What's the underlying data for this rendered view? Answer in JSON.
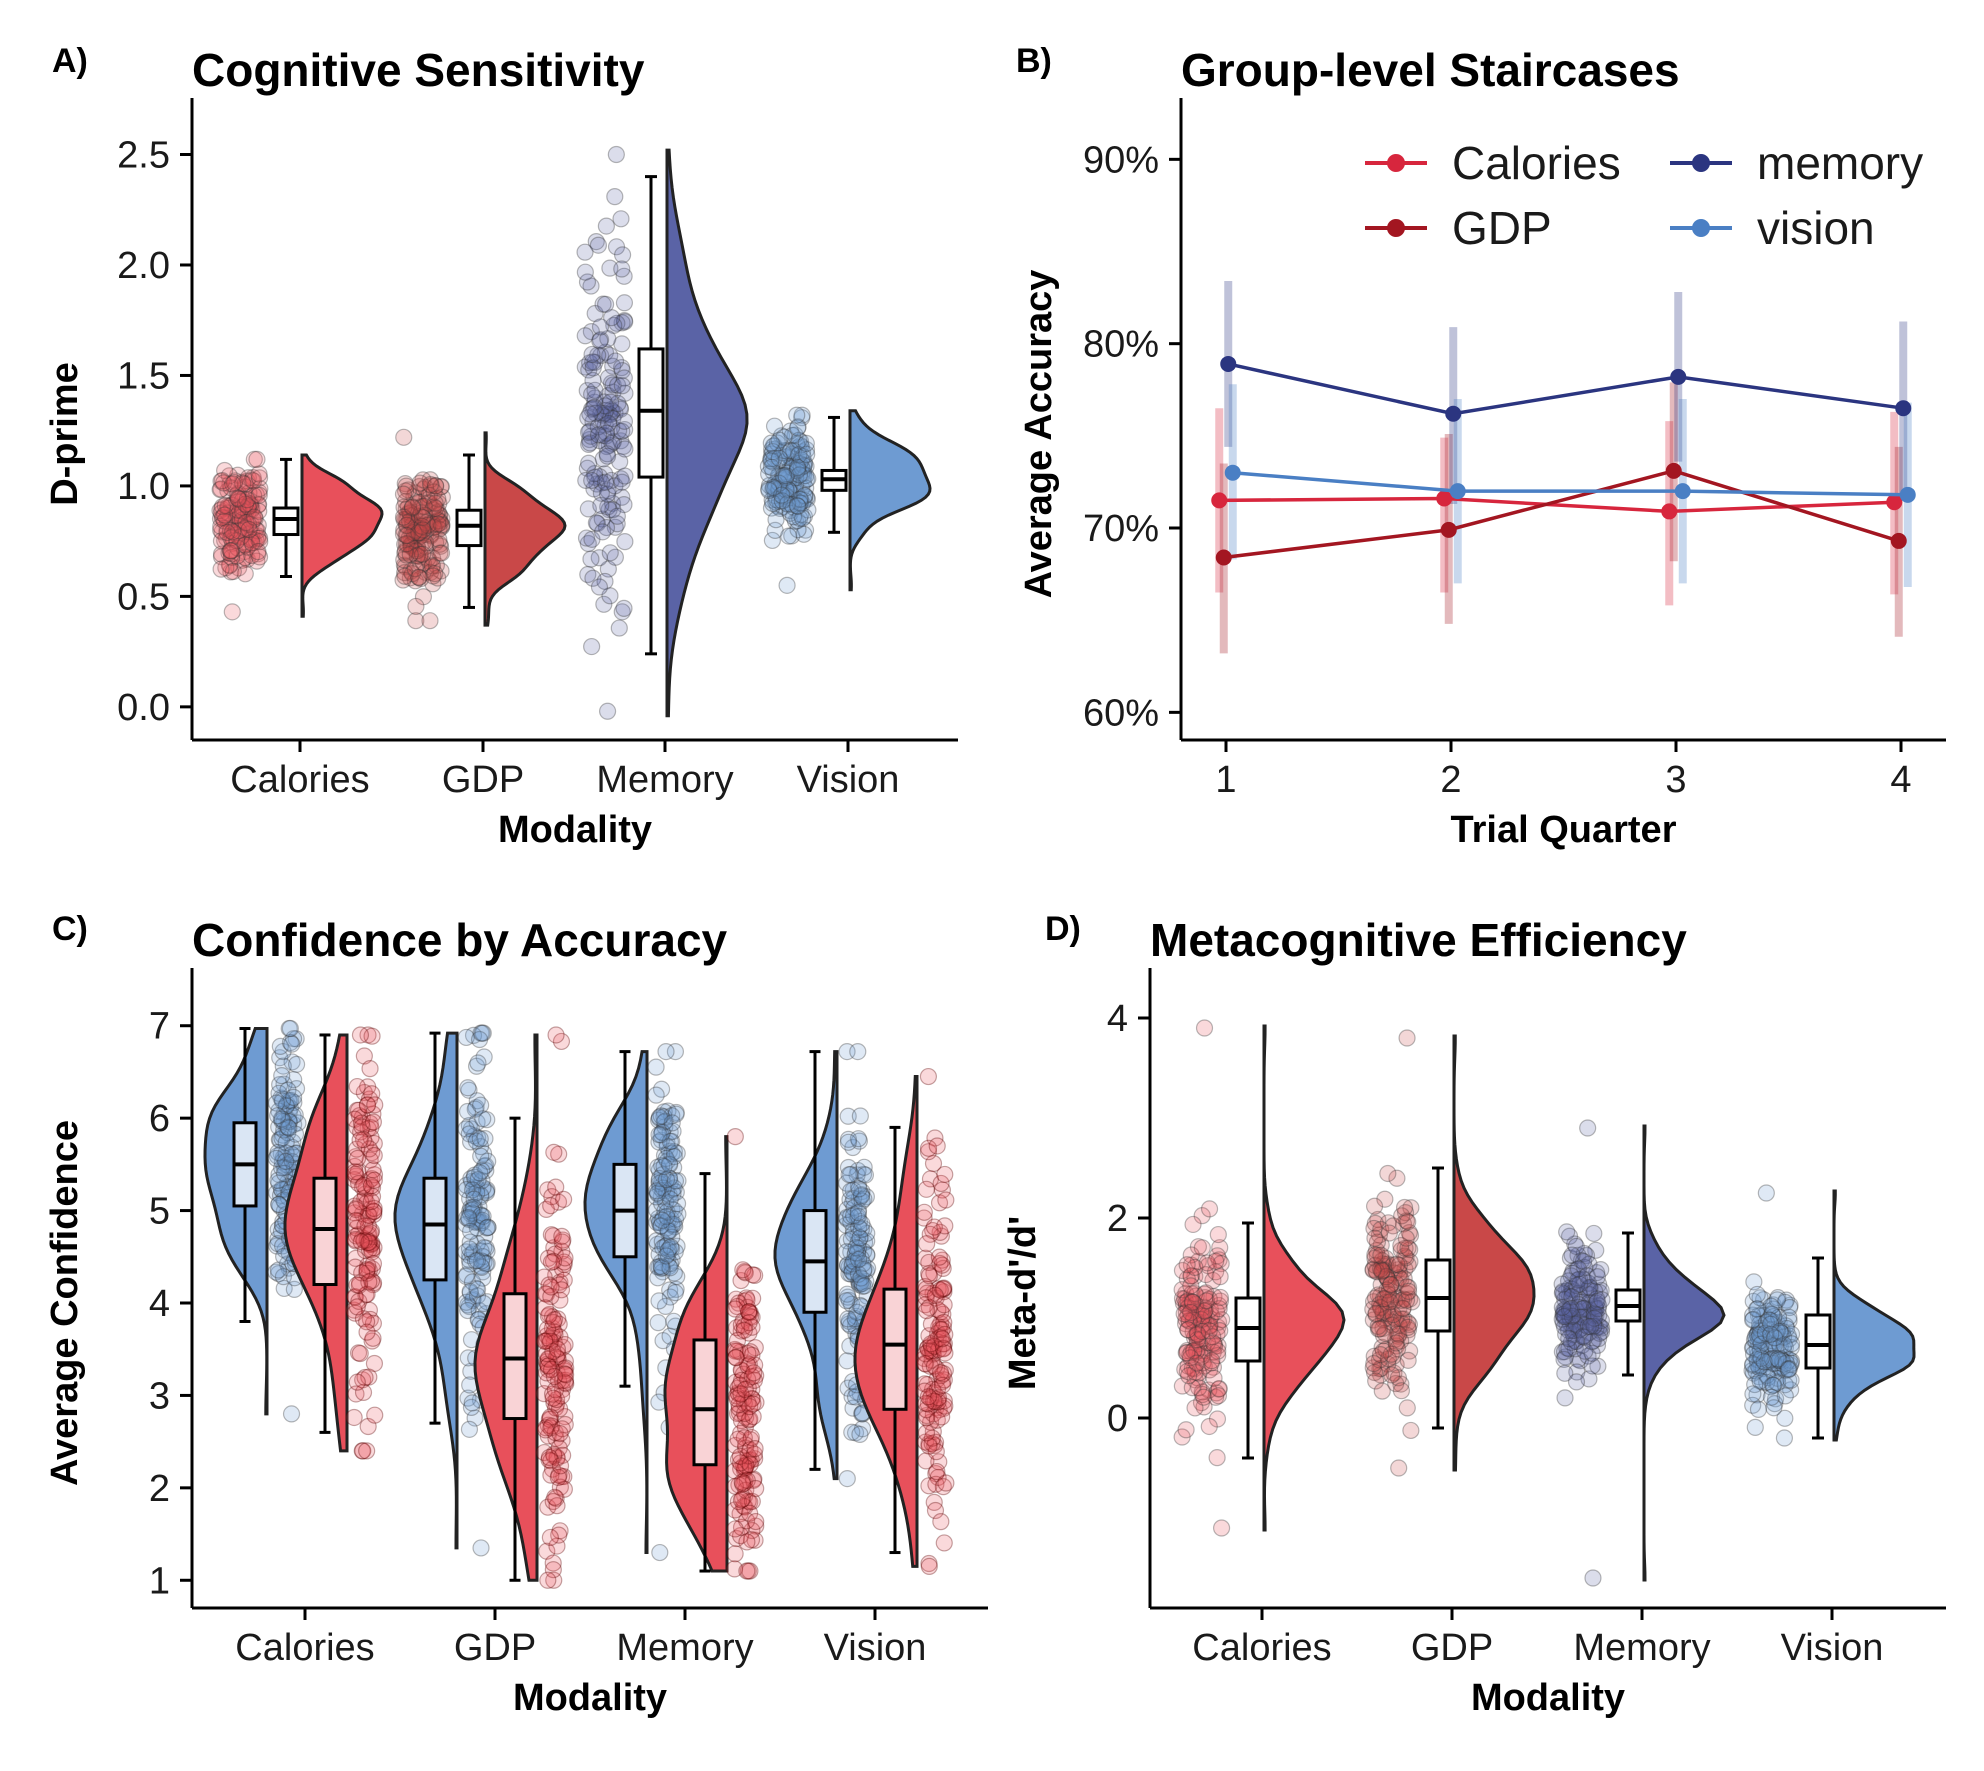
{
  "panels": {
    "a": {
      "letter": "A)",
      "title": "Cognitive Sensitivity"
    },
    "b": {
      "letter": "B)",
      "title": "Group-level Staircases"
    },
    "c": {
      "letter": "C)",
      "title": "Confidence by Accuracy"
    },
    "d": {
      "letter": "D)",
      "title": "Metacognitive Efficiency"
    }
  },
  "colors": {
    "calories": "#e8505b",
    "gdp": "#c94848",
    "memory": "#5a63a6",
    "vision": "#6e9bd2",
    "calories_line": "#d7263d",
    "gdp_line": "#a31621",
    "memory_line": "#2b3580",
    "vision_line": "#4a7fc4",
    "correct_fill": "#6e9bd2",
    "incorrect_fill": "#e8505b"
  },
  "chart_data": [
    {
      "id": "a",
      "type": "raincloud",
      "title": "Cognitive Sensitivity",
      "xlabel": "Modality",
      "ylabel": "D-prime",
      "categories": [
        "Calories",
        "GDP",
        "Memory",
        "Vision"
      ],
      "ylim": [
        -0.15,
        2.62
      ],
      "yticks": [
        0.0,
        0.5,
        1.0,
        1.5,
        2.0,
        2.5
      ],
      "ytick_labels": [
        "0.0",
        "0.5",
        "1.0",
        "1.5",
        "2.0",
        "2.5"
      ],
      "groups": [
        {
          "name": "Calories",
          "color_key": "calories",
          "mean": 0.85,
          "sd": 0.13,
          "min": 0.43,
          "max": 1.12,
          "q1": 0.78,
          "median": 0.85,
          "q3": 0.9,
          "whisker_low": 0.59,
          "whisker_high": 1.12
        },
        {
          "name": "GDP",
          "color_key": "gdp",
          "mean": 0.8,
          "sd": 0.14,
          "min": 0.39,
          "max": 1.22,
          "q1": 0.73,
          "median": 0.82,
          "q3": 0.89,
          "whisker_low": 0.45,
          "whisker_high": 1.14
        },
        {
          "name": "Memory",
          "color_key": "memory",
          "mean": 1.33,
          "sd": 0.42,
          "min": -0.02,
          "max": 2.5,
          "q1": 1.04,
          "median": 1.34,
          "q3": 1.62,
          "whisker_low": 0.24,
          "whisker_high": 2.4
        },
        {
          "name": "Vision",
          "color_key": "vision",
          "mean": 1.03,
          "sd": 0.11,
          "min": 0.55,
          "max": 1.32,
          "q1": 0.98,
          "median": 1.03,
          "q3": 1.07,
          "whisker_low": 0.79,
          "whisker_high": 1.31
        }
      ]
    },
    {
      "id": "b",
      "type": "line",
      "title": "Group-level Staircases",
      "xlabel": "Trial Quarter",
      "ylabel": "Average Accuracy",
      "x": [
        1,
        2,
        3,
        4
      ],
      "xticks": [
        1,
        2,
        3,
        4
      ],
      "xtick_labels": [
        "1",
        "2",
        "3",
        "4"
      ],
      "xlim": [
        0.8,
        4.2
      ],
      "ylim": [
        0.585,
        0.917
      ],
      "yticks": [
        0.6,
        0.7,
        0.8,
        0.9
      ],
      "ytick_labels": [
        "60%",
        "70%",
        "80%",
        "90%"
      ],
      "legend_position": "top-right",
      "series": [
        {
          "name": "Calories",
          "color_key": "calories_line",
          "values": [
            0.715,
            0.716,
            0.709,
            0.714
          ],
          "err_low": [
            0.665,
            0.665,
            0.658,
            0.664
          ],
          "err_high": [
            0.765,
            0.749,
            0.758,
            0.763
          ]
        },
        {
          "name": "GDP",
          "color_key": "gdp_line",
          "values": [
            0.684,
            0.699,
            0.731,
            0.693
          ],
          "err_low": [
            0.632,
            0.648,
            0.682,
            0.641
          ],
          "err_high": [
            0.735,
            0.751,
            0.779,
            0.744
          ]
        },
        {
          "name": "memory",
          "color_key": "memory_line",
          "values": [
            0.789,
            0.762,
            0.782,
            0.765
          ],
          "err_low": [
            0.744,
            0.713,
            0.736,
            0.718
          ],
          "err_high": [
            0.834,
            0.809,
            0.828,
            0.812
          ]
        },
        {
          "name": "vision",
          "color_key": "vision_line",
          "values": [
            0.73,
            0.72,
            0.72,
            0.718
          ],
          "err_low": [
            0.683,
            0.67,
            0.67,
            0.668
          ],
          "err_high": [
            0.778,
            0.77,
            0.77,
            0.768
          ]
        }
      ]
    },
    {
      "id": "c",
      "type": "split-raincloud",
      "title": "Confidence by Accuracy",
      "xlabel": "Modality",
      "ylabel": "Average Confidence",
      "categories": [
        "Calories",
        "GDP",
        "Memory",
        "Vision"
      ],
      "ylim": [
        0.7,
        7.3
      ],
      "yticks": [
        1,
        2,
        3,
        4,
        5,
        6,
        7
      ],
      "ytick_labels": [
        "1",
        "2",
        "3",
        "4",
        "5",
        "6",
        "7"
      ],
      "groups": [
        {
          "name": "Calories",
          "correct": {
            "mean": 5.5,
            "sd": 0.65,
            "min": 2.8,
            "max": 6.97,
            "q1": 5.05,
            "median": 5.5,
            "q3": 5.95,
            "whisker_low": 3.8,
            "whisker_high": 6.97
          },
          "incorrect": {
            "mean": 4.8,
            "sd": 0.85,
            "min": 2.4,
            "max": 6.9,
            "q1": 4.2,
            "median": 4.8,
            "q3": 5.35,
            "whisker_low": 2.6,
            "whisker_high": 6.9
          }
        },
        {
          "name": "GDP",
          "correct": {
            "mean": 4.85,
            "sd": 0.9,
            "min": 1.35,
            "max": 6.92,
            "q1": 4.25,
            "median": 4.85,
            "q3": 5.35,
            "whisker_low": 2.7,
            "whisker_high": 6.92
          },
          "incorrect": {
            "mean": 3.4,
            "sd": 1.0,
            "min": 1.0,
            "max": 6.9,
            "q1": 2.75,
            "median": 3.4,
            "q3": 4.1,
            "whisker_low": 1.0,
            "whisker_high": 6.0
          }
        },
        {
          "name": "Memory",
          "correct": {
            "mean": 5.0,
            "sd": 0.75,
            "min": 1.3,
            "max": 6.72,
            "q1": 4.5,
            "median": 5.0,
            "q3": 5.5,
            "whisker_low": 3.1,
            "whisker_high": 6.72
          },
          "incorrect": {
            "mean": 2.85,
            "sd": 0.9,
            "min": 1.1,
            "max": 5.8,
            "q1": 2.25,
            "median": 2.85,
            "q3": 3.6,
            "whisker_low": 1.1,
            "whisker_high": 5.4
          }
        },
        {
          "name": "Vision",
          "correct": {
            "mean": 4.45,
            "sd": 0.8,
            "min": 2.1,
            "max": 6.72,
            "q1": 3.9,
            "median": 4.45,
            "q3": 5.0,
            "whisker_low": 2.2,
            "whisker_high": 6.72
          },
          "incorrect": {
            "mean": 3.5,
            "sd": 0.95,
            "min": 1.15,
            "max": 6.45,
            "q1": 2.85,
            "median": 3.55,
            "q3": 4.15,
            "whisker_low": 1.3,
            "whisker_high": 5.9
          }
        }
      ]
    },
    {
      "id": "d",
      "type": "raincloud",
      "title": "Metacognitive Efficiency",
      "xlabel": "Modality",
      "ylabel": "Meta-d'/d'",
      "categories": [
        "Calories",
        "GDP",
        "Memory",
        "Vision"
      ],
      "ylim": [
        -1.9,
        4.2
      ],
      "yticks": [
        0,
        2,
        4
      ],
      "ytick_labels": [
        "0",
        "2",
        "4"
      ],
      "groups": [
        {
          "name": "Calories",
          "color_key": "calories",
          "mean": 0.9,
          "sd": 0.45,
          "min": -1.1,
          "max": 3.9,
          "q1": 0.57,
          "median": 0.9,
          "q3": 1.2,
          "whisker_low": -0.4,
          "whisker_high": 1.95
        },
        {
          "name": "GDP",
          "color_key": "gdp",
          "mean": 1.2,
          "sd": 0.5,
          "min": -0.5,
          "max": 3.8,
          "q1": 0.87,
          "median": 1.2,
          "q3": 1.58,
          "whisker_low": -0.1,
          "whisker_high": 2.5
        },
        {
          "name": "Memory",
          "color_key": "memory",
          "mean": 1.1,
          "sd": 0.3,
          "min": -1.6,
          "max": 2.9,
          "q1": 0.97,
          "median": 1.12,
          "q3": 1.28,
          "whisker_low": 0.43,
          "whisker_high": 1.85
        },
        {
          "name": "Vision",
          "color_key": "vision",
          "mean": 0.7,
          "sd": 0.3,
          "min": -0.2,
          "max": 2.25,
          "q1": 0.5,
          "median": 0.73,
          "q3": 1.03,
          "whisker_low": -0.2,
          "whisker_high": 1.6
        }
      ]
    }
  ]
}
